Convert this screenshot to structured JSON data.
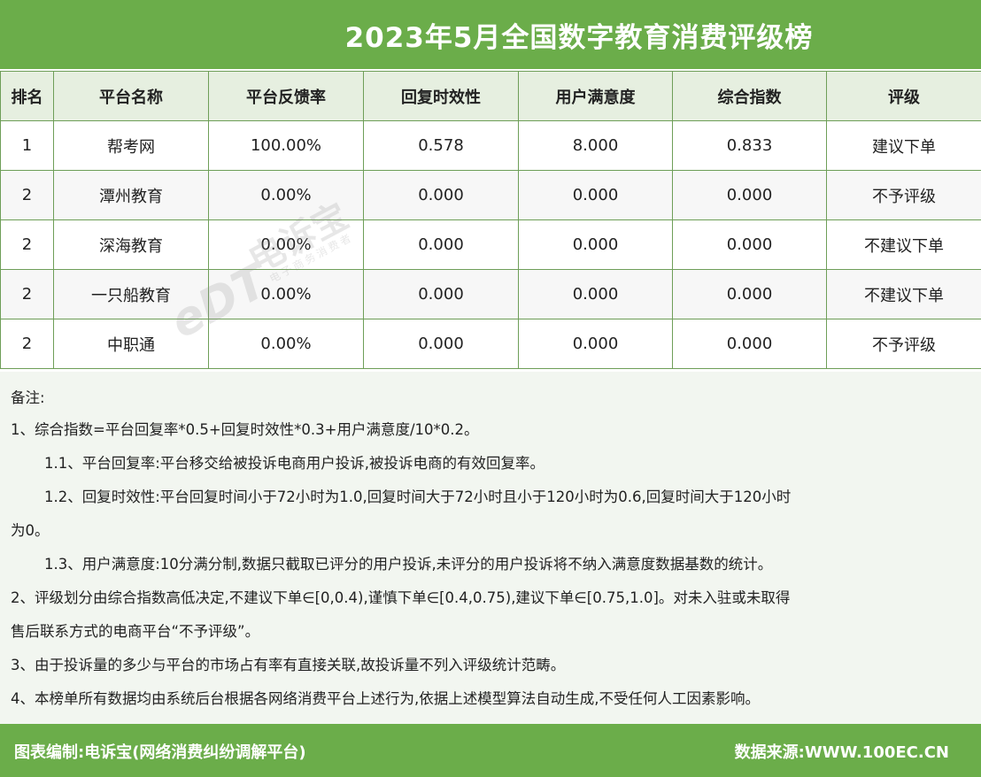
{
  "title": "2023年5月全国数字教育消费评级榜",
  "table": {
    "headers": [
      "排名",
      "平台名称",
      "平台反馈率",
      "回复时效性",
      "用户满意度",
      "综合指数",
      "评级"
    ],
    "rows": [
      [
        "1",
        "帮考网",
        "100.00%",
        "0.578",
        "8.000",
        "0.833",
        "建议下单"
      ],
      [
        "2",
        "潭州教育",
        "0.00%",
        "0.000",
        "0.000",
        "0.000",
        "不予评级"
      ],
      [
        "2",
        "深海教育",
        "0.00%",
        "0.000",
        "0.000",
        "0.000",
        "不建议下单"
      ],
      [
        "2",
        "一只船教育",
        "0.00%",
        "0.000",
        "0.000",
        "0.000",
        "不建议下单"
      ],
      [
        "2",
        "中职通",
        "0.00%",
        "0.000",
        "0.000",
        "0.000",
        "不予评级"
      ]
    ]
  },
  "notes": {
    "heading": "备注:",
    "n1": "1、综合指数=平台回复率*0.5+回复时效性*0.3+用户满意度/10*0.2。",
    "n1_1": "1.1、平台回复率:平台移交给被投诉电商用户投诉,被投诉电商的有效回复率。",
    "n1_2a": "1.2、回复时效性:平台回复时间小于72小时为1.0,回复时间大于72小时且小于120小时为0.6,回复时间大于120小时",
    "n1_2b": "为0。",
    "n1_3": "1.3、用户满意度:10分满分制,数据只截取已评分的用户投诉,未评分的用户投诉将不纳入满意度数据基数的统计。",
    "n2a": "2、评级划分由综合指数高低决定,不建议下单∈[0,0.4),谨慎下单∈[0.4,0.75),建议下单∈[0.75,1.0]。对未入驻或未取得",
    "n2b": "售后联系方式的电商平台“不予评级”。",
    "n3": "3、由于投诉量的多少与平台的市场占有率有直接关联,故投诉量不列入评级统计范畴。",
    "n4": "4、本榜单所有数据均由系统后台根据各网络消费平台上述行为,依据上述模型算法自动生成,不受任何人工因素影响。"
  },
  "footer": {
    "left": "图表编制:电诉宝(网络消费纠纷调解平台)",
    "right": "数据来源:WWW.100EC.CN"
  },
  "watermark": {
    "logo": "eDT",
    "name": "电诉宝",
    "sub": "电子商务消费者"
  },
  "colors": {
    "brand_green": "#6bad4a",
    "header_row": "#e6efe0",
    "notes_bg": "#f2f6f0"
  }
}
